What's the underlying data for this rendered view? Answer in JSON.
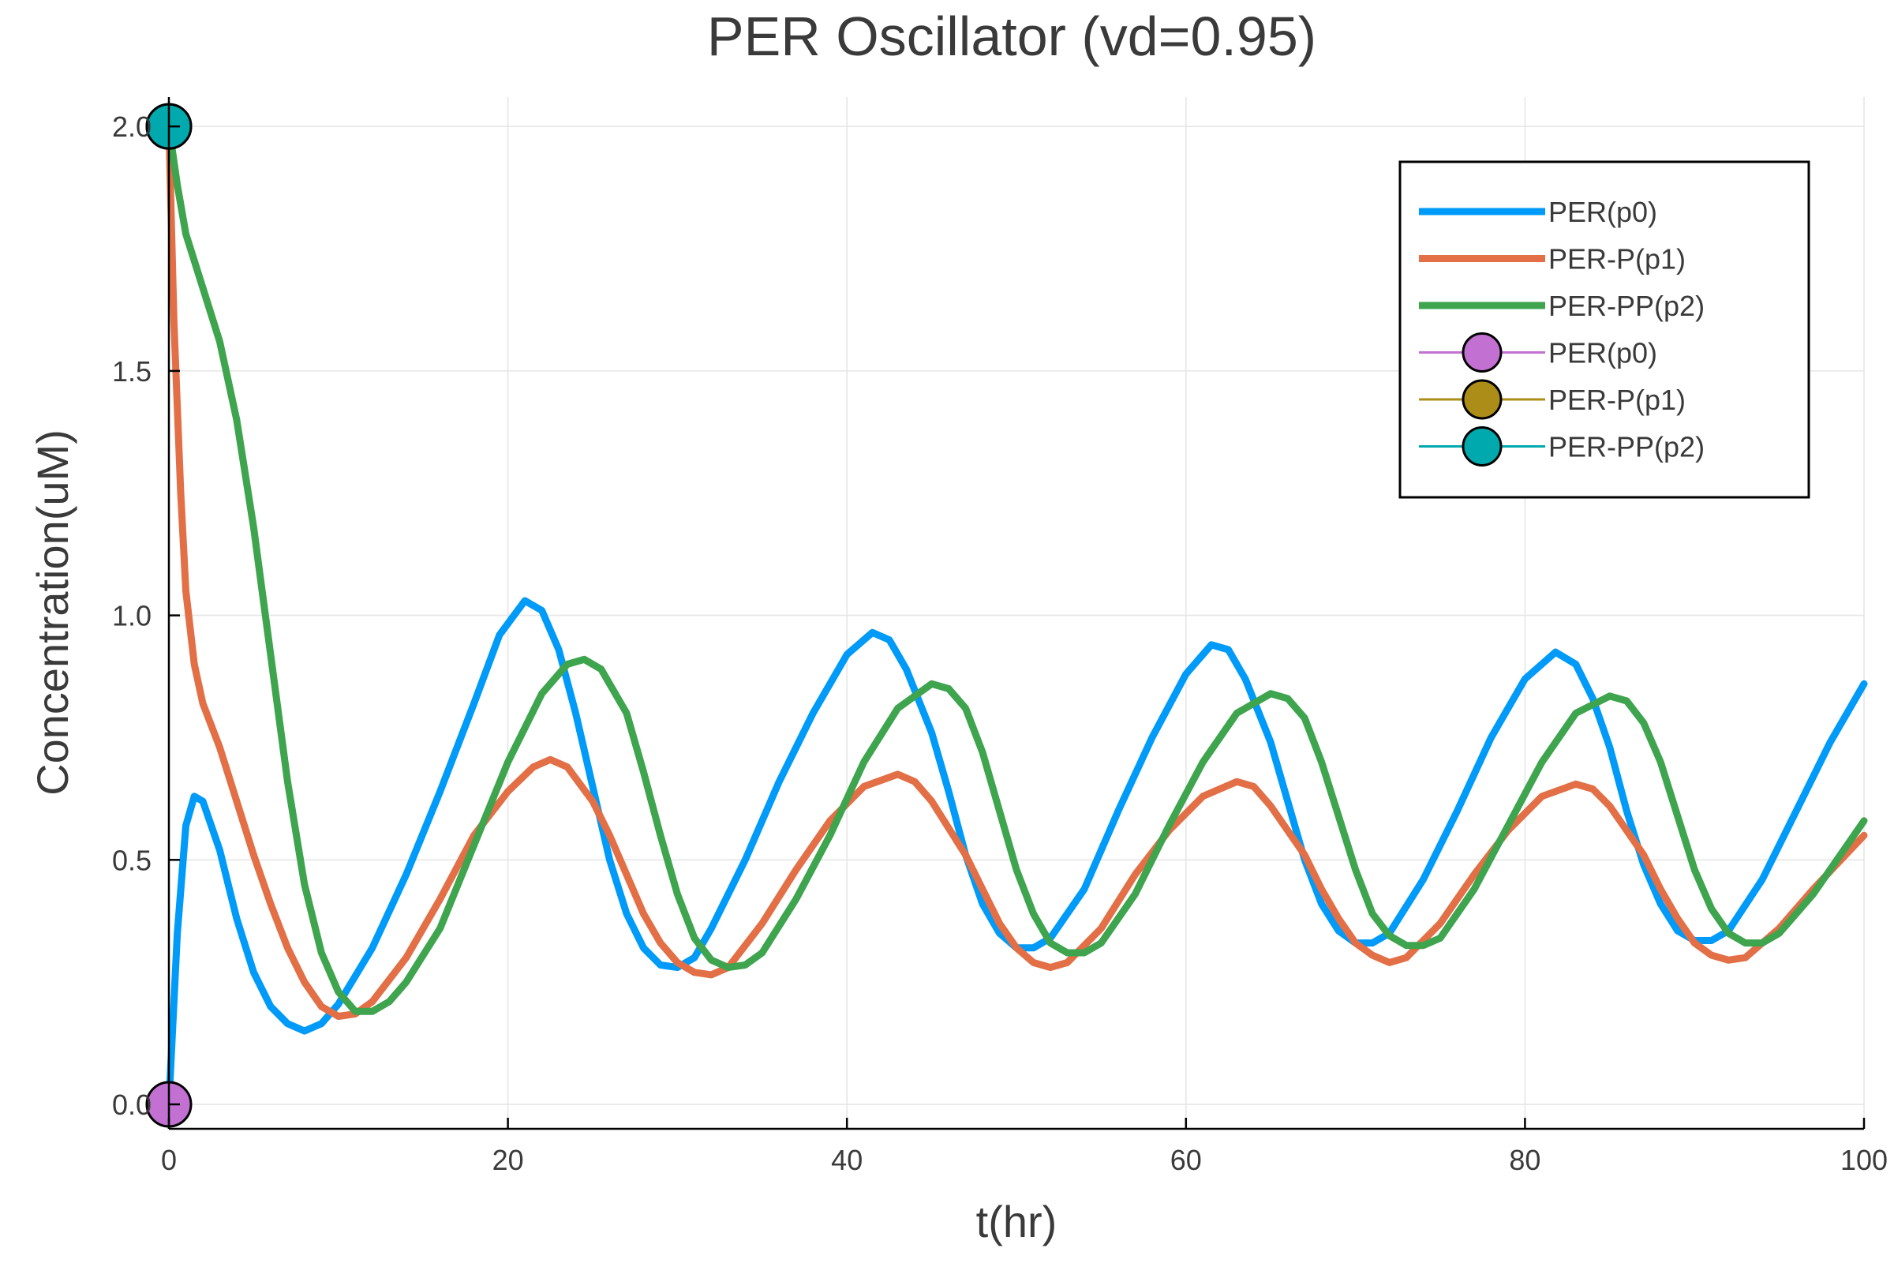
{
  "chart_data": {
    "type": "line",
    "title": "PER Oscillator (vd=0.95)",
    "xlabel": "t(hr)",
    "ylabel": "Concentration(uM)",
    "xlim": [
      0,
      100
    ],
    "ylim": [
      -0.05,
      2.06
    ],
    "x_ticks": [
      0,
      20,
      40,
      60,
      80,
      100
    ],
    "x_tick_labels": [
      "0",
      "20",
      "40",
      "60",
      "80",
      "100"
    ],
    "y_ticks": [
      0.0,
      0.5,
      1.0,
      1.5,
      2.0
    ],
    "y_tick_labels": [
      "0.0",
      "0.5",
      "1.0",
      "1.5",
      "2.0"
    ],
    "grid": true,
    "legend_position": "top-right",
    "series": [
      {
        "name": "PER(p0)",
        "color": "#009af9",
        "points": [
          [
            0,
            0.0
          ],
          [
            0.5,
            0.35
          ],
          [
            1,
            0.57
          ],
          [
            1.5,
            0.63
          ],
          [
            2,
            0.62
          ],
          [
            3,
            0.52
          ],
          [
            4,
            0.38
          ],
          [
            5,
            0.27
          ],
          [
            6,
            0.2
          ],
          [
            7,
            0.165
          ],
          [
            8,
            0.15
          ],
          [
            9,
            0.165
          ],
          [
            10,
            0.205
          ],
          [
            12,
            0.32
          ],
          [
            14,
            0.47
          ],
          [
            16,
            0.64
          ],
          [
            18,
            0.82
          ],
          [
            19.5,
            0.96
          ],
          [
            21,
            1.03
          ],
          [
            22,
            1.01
          ],
          [
            23,
            0.93
          ],
          [
            24,
            0.8
          ],
          [
            25,
            0.65
          ],
          [
            26,
            0.5
          ],
          [
            27,
            0.39
          ],
          [
            28,
            0.32
          ],
          [
            29,
            0.285
          ],
          [
            30,
            0.28
          ],
          [
            31,
            0.3
          ],
          [
            32,
            0.36
          ],
          [
            34,
            0.5
          ],
          [
            36,
            0.66
          ],
          [
            38,
            0.8
          ],
          [
            40,
            0.92
          ],
          [
            41.5,
            0.965
          ],
          [
            42.5,
            0.95
          ],
          [
            43.5,
            0.89
          ],
          [
            45,
            0.76
          ],
          [
            46,
            0.64
          ],
          [
            47,
            0.51
          ],
          [
            48,
            0.41
          ],
          [
            49,
            0.35
          ],
          [
            50,
            0.32
          ],
          [
            51,
            0.32
          ],
          [
            52,
            0.34
          ],
          [
            54,
            0.44
          ],
          [
            56,
            0.6
          ],
          [
            58,
            0.75
          ],
          [
            60,
            0.88
          ],
          [
            61.5,
            0.94
          ],
          [
            62.5,
            0.93
          ],
          [
            63.5,
            0.87
          ],
          [
            65,
            0.74
          ],
          [
            66,
            0.62
          ],
          [
            67,
            0.5
          ],
          [
            68,
            0.41
          ],
          [
            69,
            0.355
          ],
          [
            70,
            0.33
          ],
          [
            71,
            0.33
          ],
          [
            72,
            0.35
          ],
          [
            74,
            0.46
          ],
          [
            76,
            0.6
          ],
          [
            78,
            0.75
          ],
          [
            80,
            0.87
          ],
          [
            81.8,
            0.925
          ],
          [
            83,
            0.9
          ],
          [
            84,
            0.83
          ],
          [
            85,
            0.73
          ],
          [
            86,
            0.6
          ],
          [
            87,
            0.49
          ],
          [
            88,
            0.41
          ],
          [
            89,
            0.355
          ],
          [
            90,
            0.335
          ],
          [
            91,
            0.335
          ],
          [
            92,
            0.355
          ],
          [
            94,
            0.46
          ],
          [
            96,
            0.6
          ],
          [
            98,
            0.74
          ],
          [
            100,
            0.86
          ]
        ]
      },
      {
        "name": "PER-P(p1)",
        "color": "#e26f46",
        "points": [
          [
            0,
            2.0
          ],
          [
            0.3,
            1.6
          ],
          [
            0.7,
            1.25
          ],
          [
            1,
            1.05
          ],
          [
            1.5,
            0.9
          ],
          [
            2,
            0.82
          ],
          [
            3,
            0.73
          ],
          [
            4,
            0.62
          ],
          [
            5,
            0.51
          ],
          [
            6,
            0.41
          ],
          [
            7,
            0.32
          ],
          [
            8,
            0.25
          ],
          [
            9,
            0.2
          ],
          [
            10,
            0.18
          ],
          [
            11,
            0.185
          ],
          [
            12,
            0.21
          ],
          [
            14,
            0.3
          ],
          [
            16,
            0.42
          ],
          [
            18,
            0.55
          ],
          [
            20,
            0.64
          ],
          [
            21.5,
            0.69
          ],
          [
            22.5,
            0.705
          ],
          [
            23.5,
            0.69
          ],
          [
            25,
            0.62
          ],
          [
            26,
            0.55
          ],
          [
            27,
            0.47
          ],
          [
            28,
            0.39
          ],
          [
            29,
            0.33
          ],
          [
            30,
            0.29
          ],
          [
            31,
            0.27
          ],
          [
            32,
            0.265
          ],
          [
            33,
            0.28
          ],
          [
            35,
            0.37
          ],
          [
            37,
            0.48
          ],
          [
            39,
            0.58
          ],
          [
            41,
            0.65
          ],
          [
            43,
            0.675
          ],
          [
            44,
            0.66
          ],
          [
            45,
            0.62
          ],
          [
            47,
            0.51
          ],
          [
            48,
            0.44
          ],
          [
            49,
            0.37
          ],
          [
            50,
            0.32
          ],
          [
            51,
            0.29
          ],
          [
            52,
            0.28
          ],
          [
            53,
            0.29
          ],
          [
            55,
            0.36
          ],
          [
            57,
            0.47
          ],
          [
            59,
            0.56
          ],
          [
            61,
            0.63
          ],
          [
            63,
            0.66
          ],
          [
            64,
            0.65
          ],
          [
            65,
            0.61
          ],
          [
            67,
            0.51
          ],
          [
            68,
            0.44
          ],
          [
            69,
            0.38
          ],
          [
            70,
            0.33
          ],
          [
            71,
            0.305
          ],
          [
            72,
            0.29
          ],
          [
            73,
            0.3
          ],
          [
            75,
            0.37
          ],
          [
            77,
            0.47
          ],
          [
            79,
            0.56
          ],
          [
            81,
            0.63
          ],
          [
            83,
            0.655
          ],
          [
            84,
            0.645
          ],
          [
            85,
            0.61
          ],
          [
            87,
            0.51
          ],
          [
            88,
            0.44
          ],
          [
            89,
            0.38
          ],
          [
            90,
            0.33
          ],
          [
            91,
            0.305
          ],
          [
            92,
            0.295
          ],
          [
            93,
            0.3
          ],
          [
            95,
            0.36
          ],
          [
            97,
            0.44
          ],
          [
            100,
            0.55
          ]
        ]
      },
      {
        "name": "PER-PP(p2)",
        "color": "#3ea44e",
        "points": [
          [
            0,
            2.0
          ],
          [
            0.5,
            1.88
          ],
          [
            1,
            1.78
          ],
          [
            2,
            1.67
          ],
          [
            3,
            1.56
          ],
          [
            4,
            1.4
          ],
          [
            5,
            1.18
          ],
          [
            6,
            0.92
          ],
          [
            7,
            0.66
          ],
          [
            8,
            0.45
          ],
          [
            9,
            0.31
          ],
          [
            10,
            0.23
          ],
          [
            11,
            0.19
          ],
          [
            12,
            0.19
          ],
          [
            13,
            0.21
          ],
          [
            14,
            0.25
          ],
          [
            16,
            0.36
          ],
          [
            18,
            0.53
          ],
          [
            20,
            0.7
          ],
          [
            22,
            0.84
          ],
          [
            23.5,
            0.9
          ],
          [
            24.5,
            0.91
          ],
          [
            25.5,
            0.89
          ],
          [
            27,
            0.8
          ],
          [
            28,
            0.68
          ],
          [
            29,
            0.55
          ],
          [
            30,
            0.43
          ],
          [
            31,
            0.34
          ],
          [
            32,
            0.295
          ],
          [
            33,
            0.28
          ],
          [
            34,
            0.285
          ],
          [
            35,
            0.31
          ],
          [
            37,
            0.42
          ],
          [
            39,
            0.55
          ],
          [
            41,
            0.7
          ],
          [
            43,
            0.81
          ],
          [
            45,
            0.86
          ],
          [
            46,
            0.85
          ],
          [
            47,
            0.81
          ],
          [
            48,
            0.72
          ],
          [
            49,
            0.6
          ],
          [
            50,
            0.48
          ],
          [
            51,
            0.39
          ],
          [
            52,
            0.33
          ],
          [
            53,
            0.31
          ],
          [
            54,
            0.31
          ],
          [
            55,
            0.33
          ],
          [
            57,
            0.43
          ],
          [
            59,
            0.57
          ],
          [
            61,
            0.7
          ],
          [
            63,
            0.8
          ],
          [
            65,
            0.84
          ],
          [
            66,
            0.83
          ],
          [
            67,
            0.79
          ],
          [
            68,
            0.7
          ],
          [
            69,
            0.59
          ],
          [
            70,
            0.48
          ],
          [
            71,
            0.39
          ],
          [
            72,
            0.345
          ],
          [
            73,
            0.325
          ],
          [
            74,
            0.325
          ],
          [
            75,
            0.34
          ],
          [
            77,
            0.44
          ],
          [
            79,
            0.57
          ],
          [
            81,
            0.7
          ],
          [
            83,
            0.8
          ],
          [
            85,
            0.835
          ],
          [
            86,
            0.825
          ],
          [
            87,
            0.78
          ],
          [
            88,
            0.7
          ],
          [
            89,
            0.59
          ],
          [
            90,
            0.48
          ],
          [
            91,
            0.4
          ],
          [
            92,
            0.35
          ],
          [
            93,
            0.33
          ],
          [
            94,
            0.33
          ],
          [
            95,
            0.35
          ],
          [
            97,
            0.43
          ],
          [
            100,
            0.58
          ]
        ]
      },
      {
        "name": "PER(p0)",
        "color": "#c271d2",
        "marker": "circle",
        "points": [
          [
            0,
            0.0
          ]
        ]
      },
      {
        "name": "PER-P(p1)",
        "color": "#ac8d18",
        "marker": "circle",
        "points": [
          [
            0,
            2.0
          ]
        ]
      },
      {
        "name": "PER-PP(p2)",
        "color": "#00a9ad",
        "marker": "circle",
        "points": [
          [
            0,
            2.0
          ]
        ]
      }
    ]
  }
}
